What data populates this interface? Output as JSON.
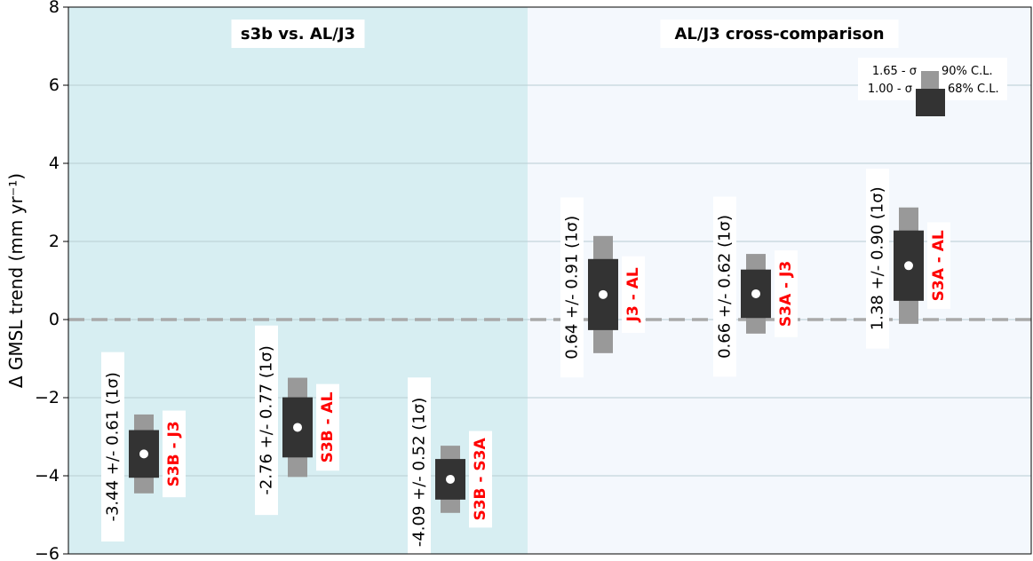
{
  "colors": {
    "panel_left": "#d7eef2",
    "panel_right": "#f4f8fd",
    "box_68": "#333333",
    "box_90": "#999999",
    "zero_line": "#a9a9a9",
    "label_red": "#ff0000",
    "grid": "#b9cdd2"
  },
  "chart_data": {
    "type": "box",
    "ylabel": "Δ GMSL trend (mm yr⁻¹)",
    "ylim": [
      -6,
      8
    ],
    "yticks": [
      -6,
      -4,
      -2,
      0,
      2,
      4,
      6,
      8
    ],
    "ytick_labels": [
      "−6",
      "−4",
      "−2",
      "0",
      "2",
      "4",
      "6",
      "8"
    ],
    "grid": true,
    "zero_line": true,
    "panels": [
      {
        "title": "s3b vs. AL/J3"
      },
      {
        "title": "AL/J3 cross-comparison"
      }
    ],
    "series": [
      {
        "name": "S3B - J3",
        "panel": 0,
        "mean": -3.44,
        "sigma": 0.61,
        "ci68": [
          -4.05,
          -2.83
        ],
        "ci90": [
          -4.45,
          -2.43
        ],
        "value_label": "-3.44 +/- 0.61 (1σ)"
      },
      {
        "name": "S3B - AL",
        "panel": 0,
        "mean": -2.76,
        "sigma": 0.77,
        "ci68": [
          -3.53,
          -1.99
        ],
        "ci90": [
          -4.03,
          -1.49
        ],
        "value_label": "-2.76 +/- 0.77 (1σ)"
      },
      {
        "name": "S3B - S3A",
        "panel": 0,
        "mean": -4.09,
        "sigma": 0.52,
        "ci68": [
          -4.61,
          -3.57
        ],
        "ci90": [
          -4.95,
          -3.23
        ],
        "value_label": "-4.09 +/- 0.52 (1σ)"
      },
      {
        "name": "J3 - AL",
        "panel": 1,
        "mean": 0.64,
        "sigma": 0.91,
        "ci68": [
          -0.27,
          1.55
        ],
        "ci90": [
          -0.86,
          2.14
        ],
        "value_label": "0.64 +/- 0.91 (1σ)"
      },
      {
        "name": "S3A - J3",
        "panel": 1,
        "mean": 0.66,
        "sigma": 0.62,
        "ci68": [
          0.04,
          1.28
        ],
        "ci90": [
          -0.36,
          1.68
        ],
        "value_label": "0.66 +/- 0.62 (1σ)"
      },
      {
        "name": "S3A - AL",
        "panel": 1,
        "mean": 1.38,
        "sigma": 0.9,
        "ci68": [
          0.48,
          2.28
        ],
        "ci90": [
          -0.11,
          2.87
        ],
        "value_label": "1.38 +/- 0.90 (1σ)"
      }
    ],
    "legend": {
      "placement": "top-right",
      "items": [
        {
          "left": "1.65 - σ",
          "right": "90% C.L."
        },
        {
          "left": "1.00 - σ",
          "right": "68% C.L."
        }
      ]
    }
  }
}
